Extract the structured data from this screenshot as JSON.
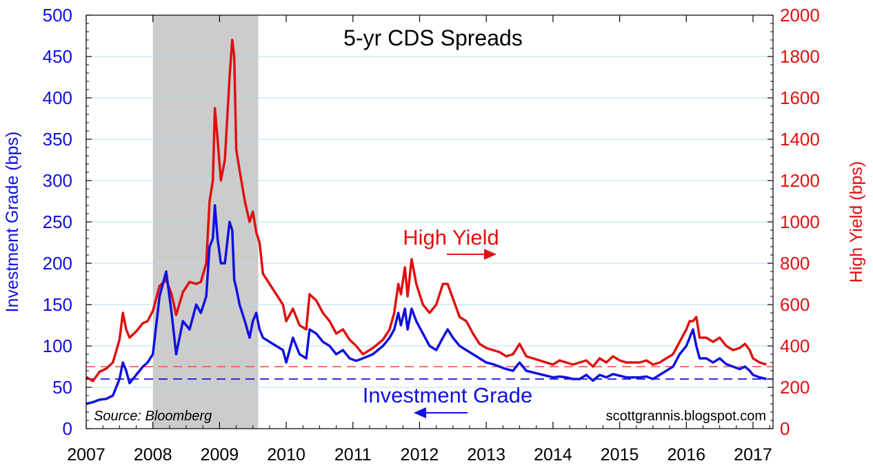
{
  "chart_data": {
    "type": "line",
    "title": "5-yr CDS Spreads",
    "ylabel_left": "Investment Grade (bps)",
    "ylabel_right": "High Yield (bps)",
    "xlim": [
      2007.0,
      2017.3
    ],
    "ylim_left": [
      0,
      500
    ],
    "ylim_right": [
      0,
      2000
    ],
    "x_ticks": [
      2007,
      2008,
      2009,
      2010,
      2011,
      2012,
      2013,
      2014,
      2015,
      2016,
      2017
    ],
    "y_ticks_left": [
      0,
      50,
      100,
      150,
      200,
      250,
      300,
      350,
      400,
      450,
      500
    ],
    "y_ticks_right": [
      0,
      200,
      400,
      600,
      800,
      1000,
      1200,
      1400,
      1600,
      1800,
      2000
    ],
    "grid": true,
    "recession_shading": {
      "start": 2008.0,
      "end": 2009.58,
      "color": "#cccccc"
    },
    "reference_lines": [
      {
        "axis": "left",
        "value": 60,
        "color": "#1010e0",
        "style": "dashed"
      },
      {
        "axis": "right",
        "value": 300,
        "color": "#f06060",
        "style": "dashed"
      }
    ],
    "annotations": {
      "high_yield_label": "High Yield",
      "investment_grade_label": "Investment Grade",
      "source": "Source: Bloomberg",
      "credit": "scottgrannis.blogspot.com"
    },
    "colors": {
      "high_yield": "#e01010",
      "investment_grade": "#1010e0",
      "recession": "#cccccc"
    },
    "series": [
      {
        "name": "High Yield",
        "axis": "right",
        "color": "#e01010",
        "x": [
          2007.0,
          2007.1,
          2007.2,
          2007.3,
          2007.4,
          2007.5,
          2007.55,
          2007.6,
          2007.65,
          2007.75,
          2007.85,
          2007.92,
          2008.0,
          2008.1,
          2008.2,
          2008.28,
          2008.35,
          2008.45,
          2008.55,
          2008.65,
          2008.72,
          2008.8,
          2008.85,
          2008.9,
          2008.93,
          2008.97,
          2009.02,
          2009.08,
          2009.15,
          2009.19,
          2009.22,
          2009.25,
          2009.3,
          2009.38,
          2009.45,
          2009.5,
          2009.55,
          2009.6,
          2009.65,
          2009.75,
          2009.85,
          2009.95,
          2010.0,
          2010.1,
          2010.2,
          2010.3,
          2010.35,
          2010.45,
          2010.55,
          2010.65,
          2010.75,
          2010.85,
          2010.95,
          2011.05,
          2011.15,
          2011.3,
          2011.45,
          2011.55,
          2011.62,
          2011.68,
          2011.72,
          2011.78,
          2011.82,
          2011.88,
          2011.95,
          2012.05,
          2012.15,
          2012.25,
          2012.35,
          2012.42,
          2012.5,
          2012.6,
          2012.7,
          2012.8,
          2012.9,
          2013.0,
          2013.1,
          2013.2,
          2013.3,
          2013.4,
          2013.5,
          2013.6,
          2013.7,
          2013.8,
          2013.9,
          2014.0,
          2014.1,
          2014.2,
          2014.3,
          2014.4,
          2014.5,
          2014.6,
          2014.7,
          2014.8,
          2014.9,
          2015.0,
          2015.1,
          2015.2,
          2015.3,
          2015.4,
          2015.5,
          2015.6,
          2015.7,
          2015.8,
          2015.9,
          2016.0,
          2016.05,
          2016.1,
          2016.15,
          2016.2,
          2016.3,
          2016.4,
          2016.5,
          2016.6,
          2016.7,
          2016.8,
          2016.88,
          2016.95,
          2017.0,
          2017.1,
          2017.2
        ],
        "values": [
          250,
          230,
          275,
          290,
          320,
          430,
          560,
          480,
          440,
          470,
          510,
          520,
          570,
          690,
          720,
          650,
          550,
          660,
          710,
          700,
          710,
          800,
          1100,
          1200,
          1550,
          1400,
          1200,
          1300,
          1700,
          1880,
          1800,
          1350,
          1250,
          1100,
          1000,
          1050,
          950,
          900,
          750,
          700,
          650,
          600,
          520,
          580,
          500,
          480,
          650,
          620,
          560,
          520,
          460,
          480,
          430,
          400,
          360,
          390,
          430,
          480,
          560,
          700,
          650,
          780,
          640,
          820,
          700,
          600,
          560,
          600,
          700,
          700,
          630,
          540,
          520,
          460,
          410,
          390,
          380,
          370,
          350,
          360,
          410,
          350,
          340,
          330,
          320,
          310,
          330,
          320,
          310,
          320,
          330,
          300,
          340,
          320,
          350,
          330,
          320,
          320,
          320,
          330,
          310,
          320,
          340,
          360,
          420,
          480,
          520,
          520,
          540,
          440,
          440,
          420,
          440,
          400,
          380,
          390,
          410,
          380,
          340,
          320,
          310
        ]
      },
      {
        "name": "Investment Grade",
        "axis": "left",
        "color": "#1010e0",
        "x": [
          2007.0,
          2007.1,
          2007.2,
          2007.3,
          2007.4,
          2007.5,
          2007.55,
          2007.6,
          2007.65,
          2007.75,
          2007.85,
          2007.92,
          2008.0,
          2008.1,
          2008.2,
          2008.28,
          2008.35,
          2008.45,
          2008.55,
          2008.65,
          2008.72,
          2008.8,
          2008.85,
          2008.9,
          2008.93,
          2008.97,
          2009.02,
          2009.08,
          2009.15,
          2009.19,
          2009.22,
          2009.25,
          2009.3,
          2009.38,
          2009.45,
          2009.5,
          2009.55,
          2009.6,
          2009.65,
          2009.75,
          2009.85,
          2009.95,
          2010.0,
          2010.1,
          2010.2,
          2010.3,
          2010.35,
          2010.45,
          2010.55,
          2010.65,
          2010.75,
          2010.85,
          2010.95,
          2011.05,
          2011.15,
          2011.3,
          2011.45,
          2011.55,
          2011.62,
          2011.68,
          2011.72,
          2011.78,
          2011.82,
          2011.88,
          2011.95,
          2012.05,
          2012.15,
          2012.25,
          2012.35,
          2012.42,
          2012.5,
          2012.6,
          2012.7,
          2012.8,
          2012.9,
          2013.0,
          2013.1,
          2013.2,
          2013.3,
          2013.4,
          2013.5,
          2013.6,
          2013.7,
          2013.8,
          2013.9,
          2014.0,
          2014.1,
          2014.2,
          2014.3,
          2014.4,
          2014.5,
          2014.6,
          2014.7,
          2014.8,
          2014.9,
          2015.0,
          2015.1,
          2015.2,
          2015.3,
          2015.4,
          2015.5,
          2015.6,
          2015.7,
          2015.8,
          2015.9,
          2016.0,
          2016.05,
          2016.1,
          2016.15,
          2016.2,
          2016.3,
          2016.4,
          2016.5,
          2016.6,
          2016.7,
          2016.8,
          2016.88,
          2016.95,
          2017.0,
          2017.1,
          2017.2
        ],
        "values": [
          30,
          32,
          35,
          36,
          40,
          60,
          80,
          70,
          55,
          65,
          75,
          80,
          90,
          160,
          190,
          140,
          90,
          130,
          120,
          150,
          140,
          160,
          220,
          230,
          270,
          230,
          200,
          200,
          250,
          240,
          180,
          170,
          150,
          130,
          110,
          130,
          140,
          120,
          110,
          105,
          100,
          95,
          80,
          110,
          90,
          85,
          120,
          115,
          105,
          100,
          90,
          95,
          85,
          82,
          85,
          90,
          100,
          110,
          120,
          140,
          125,
          145,
          120,
          145,
          130,
          115,
          100,
          95,
          110,
          120,
          110,
          100,
          95,
          90,
          85,
          80,
          78,
          75,
          72,
          70,
          80,
          70,
          68,
          66,
          64,
          62,
          63,
          62,
          60,
          60,
          65,
          58,
          65,
          62,
          66,
          64,
          62,
          62,
          62,
          63,
          60,
          65,
          70,
          75,
          90,
          100,
          110,
          120,
          100,
          85,
          85,
          80,
          85,
          78,
          75,
          72,
          75,
          70,
          65,
          62,
          60
        ]
      }
    ]
  }
}
